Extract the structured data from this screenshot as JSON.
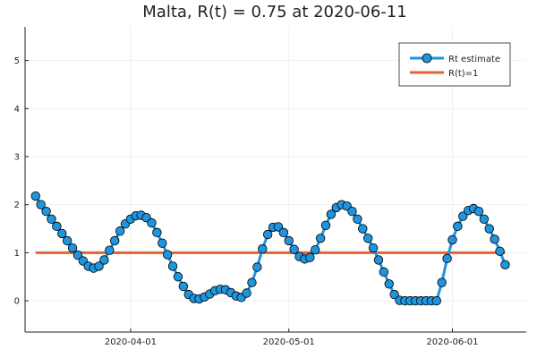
{
  "chart_data": {
    "type": "line",
    "title": "Malta, R(t) = 0.75 at 2020-06-11",
    "xlabel": "",
    "ylabel": "",
    "x_start": "2020-03-14",
    "x_step_days": 1,
    "xlim": [
      "2020-03-12",
      "2020-06-15"
    ],
    "ylim": [
      -0.65,
      5.7
    ],
    "grid": true,
    "legend_position": "top-right",
    "x_ticks": [
      {
        "date": "2020-04-01",
        "label": "2020-04-01"
      },
      {
        "date": "2020-05-01",
        "label": "2020-05-01"
      },
      {
        "date": "2020-06-01",
        "label": "2020-06-01"
      }
    ],
    "y_ticks": [
      {
        "value": 0,
        "label": "0"
      },
      {
        "value": 1,
        "label": "1"
      },
      {
        "value": 2,
        "label": "2"
      },
      {
        "value": 3,
        "label": "3"
      },
      {
        "value": 4,
        "label": "4"
      },
      {
        "value": 5,
        "label": "5"
      }
    ],
    "series": [
      {
        "name": "Rt estimate",
        "color": "#1f95de",
        "marker": "circle",
        "values": [
          2.18,
          2.0,
          1.86,
          1.7,
          1.55,
          1.4,
          1.25,
          1.1,
          0.95,
          0.83,
          0.72,
          0.68,
          0.72,
          0.85,
          1.05,
          1.25,
          1.45,
          1.6,
          1.7,
          1.77,
          1.78,
          1.73,
          1.62,
          1.42,
          1.2,
          0.96,
          0.72,
          0.5,
          0.3,
          0.13,
          0.05,
          0.04,
          0.08,
          0.14,
          0.21,
          0.24,
          0.23,
          0.17,
          0.1,
          0.07,
          0.16,
          0.38,
          0.7,
          1.08,
          1.38,
          1.53,
          1.54,
          1.42,
          1.25,
          1.07,
          0.92,
          0.87,
          0.9,
          1.06,
          1.3,
          1.57,
          1.8,
          1.94,
          2.0,
          1.97,
          1.86,
          1.7,
          1.5,
          1.3,
          1.1,
          0.85,
          0.6,
          0.35,
          0.13,
          0.01,
          0.0,
          0.0,
          0.0,
          0.0,
          0.0,
          0.0,
          0.0,
          0.38,
          0.88,
          1.27,
          1.55,
          1.76,
          1.88,
          1.92,
          1.86,
          1.7,
          1.5,
          1.28,
          1.03,
          0.75
        ]
      },
      {
        "name": "R(t)=1",
        "color": "#e06535",
        "x_range": [
          "2020-03-14",
          "2020-06-11"
        ],
        "values": [
          1,
          1
        ]
      }
    ]
  }
}
